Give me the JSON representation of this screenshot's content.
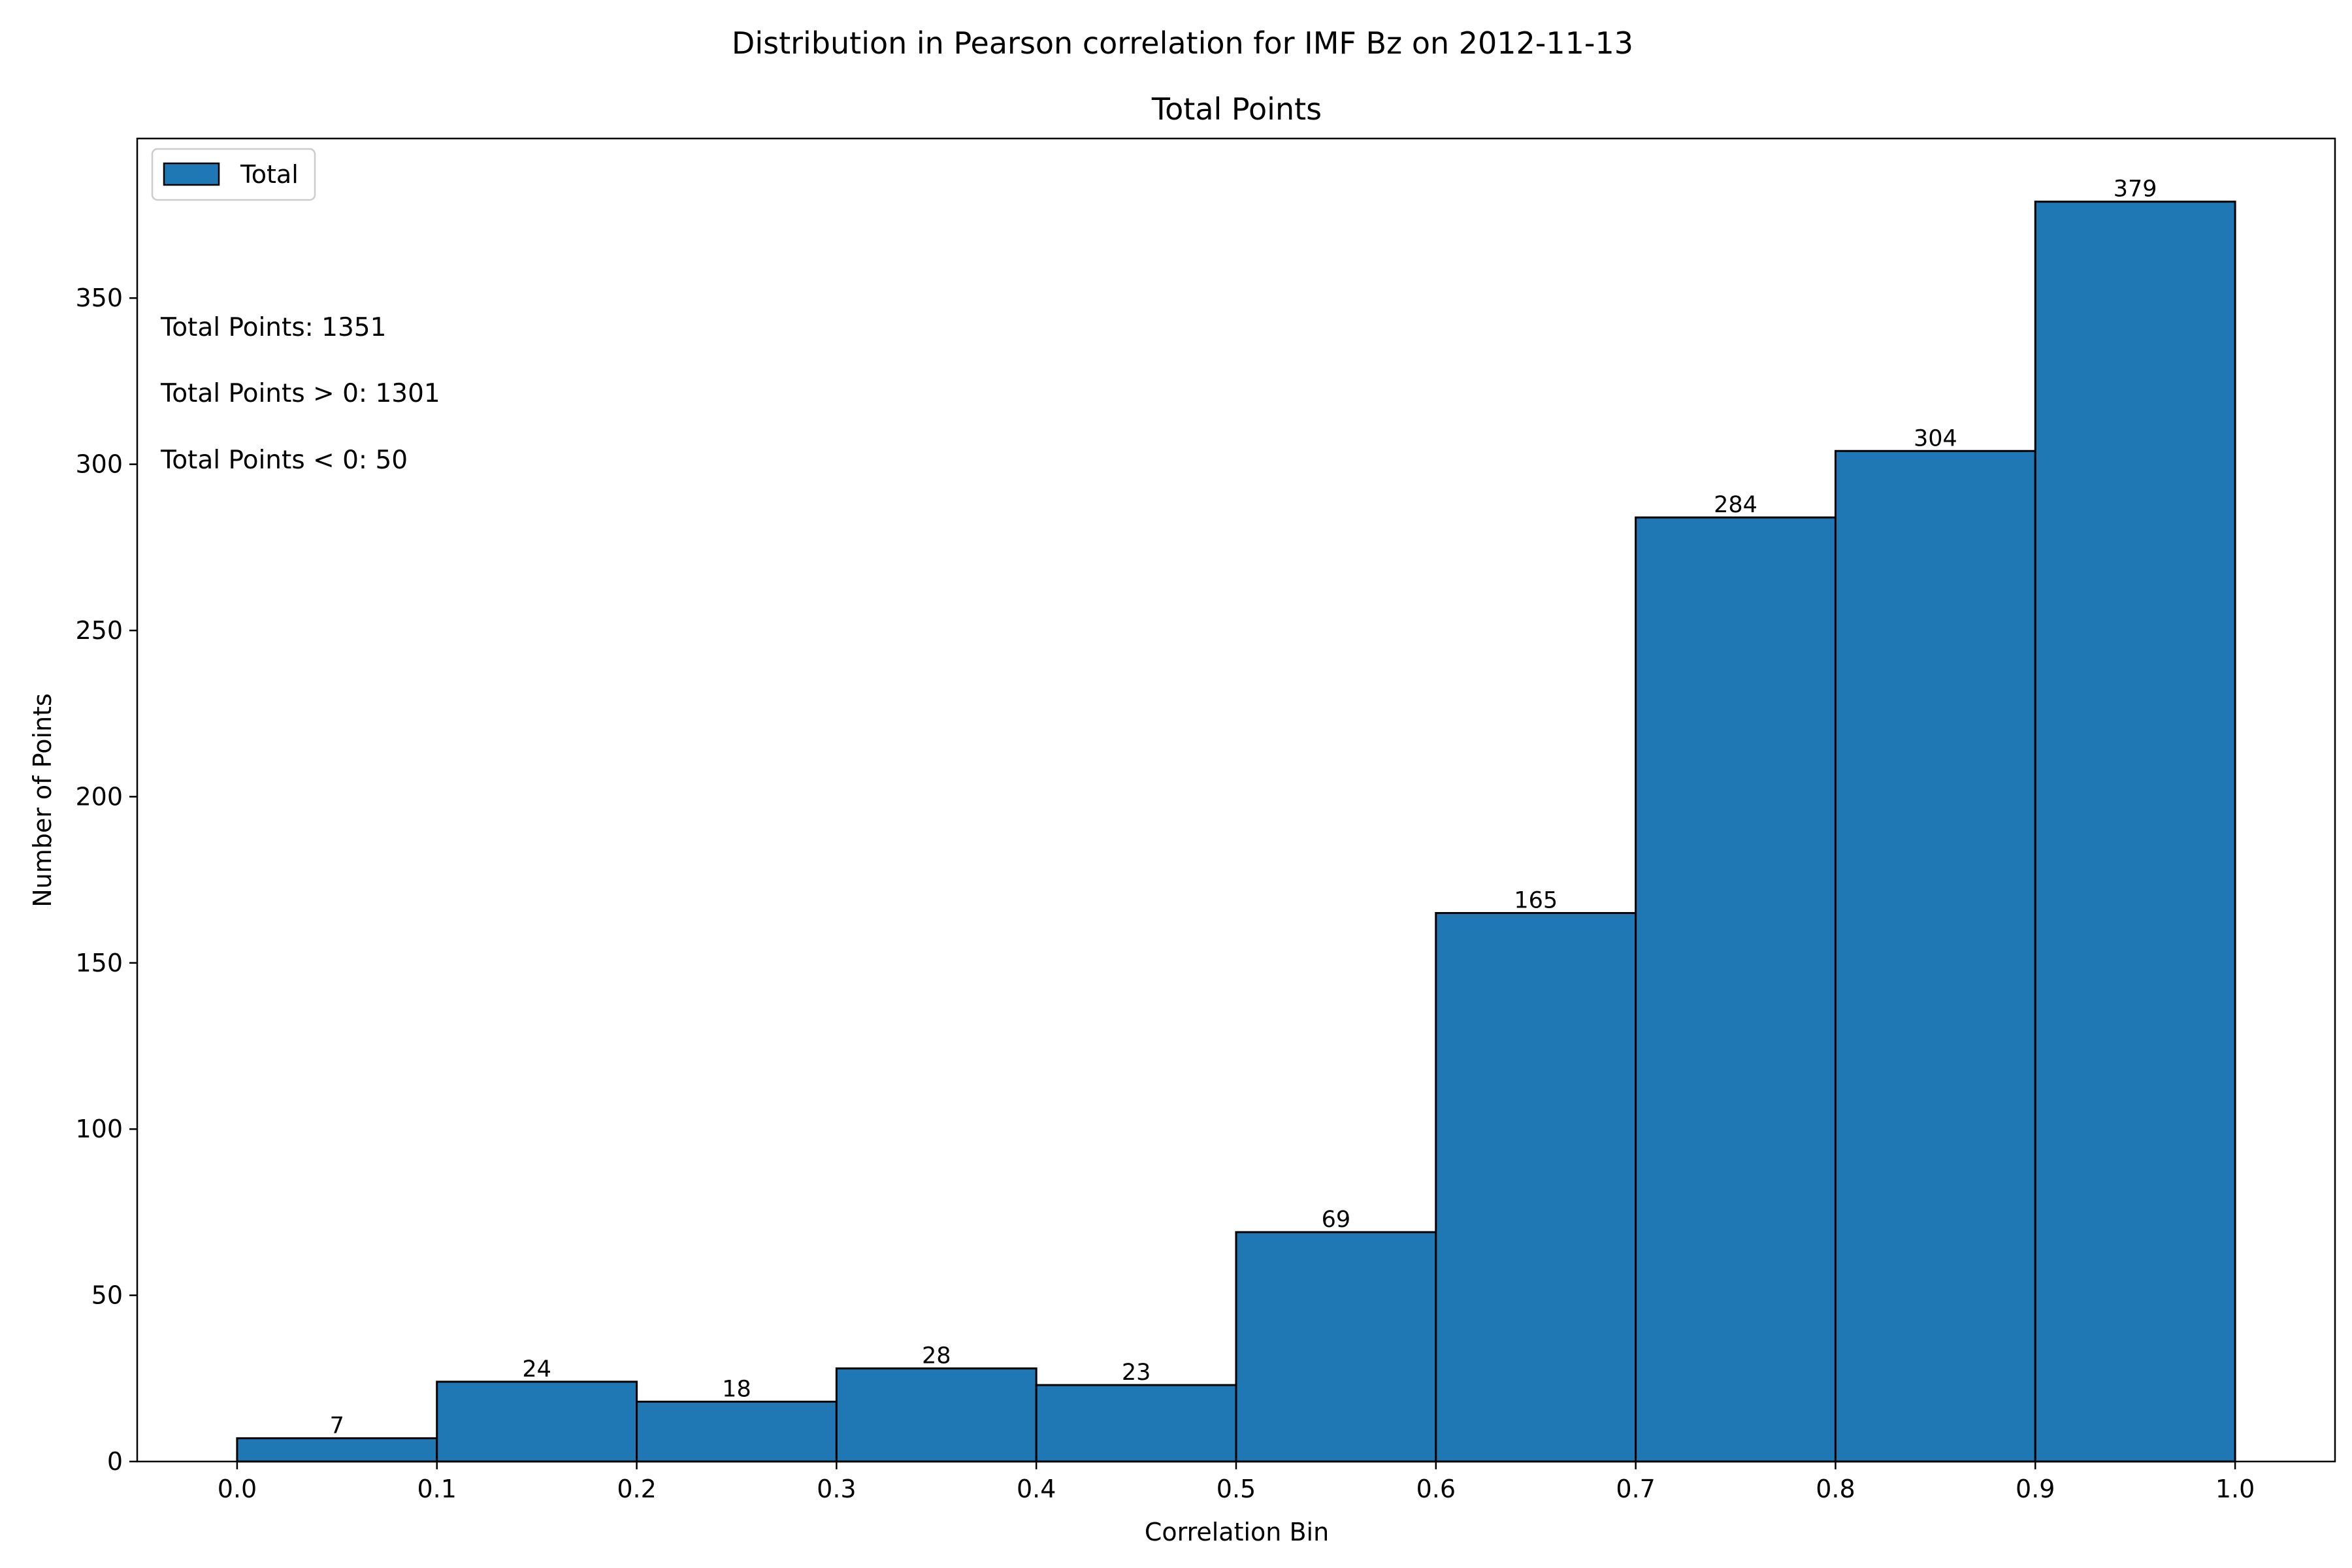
{
  "chart_data": {
    "type": "bar",
    "suptitle": "Distribution in Pearson correlation for IMF Bz on 2012-11-13",
    "title": "Total Points",
    "xlabel": "Correlation Bin",
    "ylabel": "Number of Points",
    "bin_edges": [
      0.0,
      0.1,
      0.2,
      0.3,
      0.4,
      0.5,
      0.6,
      0.7,
      0.8,
      0.9,
      1.0
    ],
    "series": [
      {
        "name": "Total",
        "color": "#1f77b4",
        "edgecolor": "#000000",
        "values": [
          7,
          24,
          18,
          28,
          23,
          69,
          165,
          284,
          304,
          379
        ]
      }
    ],
    "xlim": [
      -0.05,
      1.05
    ],
    "ylim": [
      0,
      398
    ],
    "xticks": [
      "0.0",
      "0.1",
      "0.2",
      "0.3",
      "0.4",
      "0.5",
      "0.6",
      "0.7",
      "0.8",
      "0.9",
      "1.0"
    ],
    "yticks": [
      0,
      50,
      100,
      150,
      200,
      250,
      300,
      350
    ],
    "grid": false,
    "legend_position": "upper left",
    "annotations": [
      "Total Points: 1351",
      "Total Points > 0: 1301",
      "Total Points < 0: 50"
    ]
  }
}
